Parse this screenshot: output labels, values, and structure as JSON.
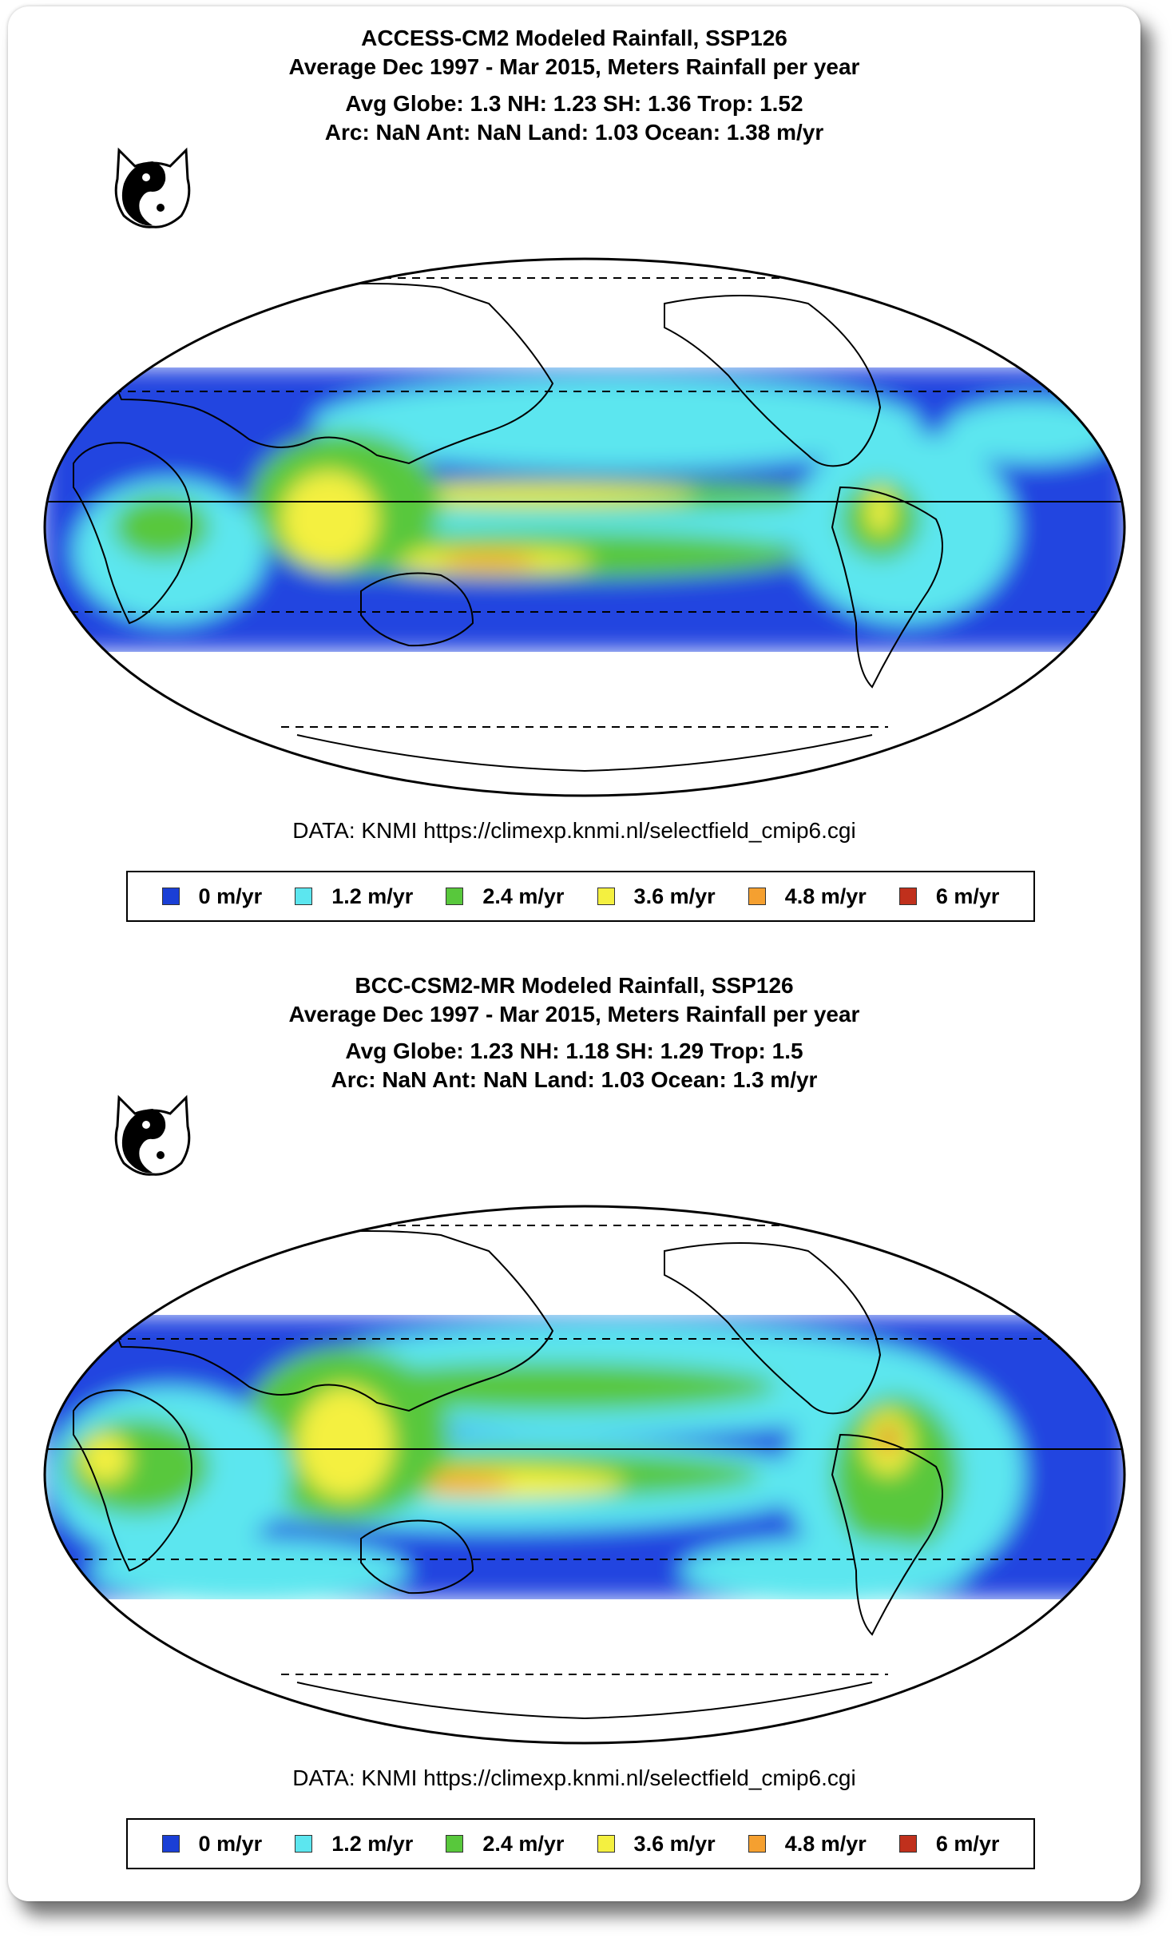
{
  "colors": {
    "c0": "#1a3fd6",
    "c1": "#5ce6ef",
    "c2": "#58c83c",
    "c3": "#f4f040",
    "c4": "#f5a030",
    "c5": "#c0301c"
  },
  "panels": [
    {
      "title": "ACCESS-CM2 Modeled Rainfall, SSP126",
      "subtitle": "Average Dec 1997 - Mar 2015, Meters Rainfall per year",
      "stats1": "Avg Globe: 1.3  NH: 1.23  SH: 1.36  Trop: 1.52",
      "stats2": "Arc: NaN  Ant: NaN  Land: 1.03 Ocean: 1.38 m/yr",
      "source": "DATA: KNMI https://climexp.knmi.nl/selectfield_cmip6.cgi",
      "legend": [
        "0 m/yr",
        "1.2 m/yr",
        "2.4 m/yr",
        "3.6 m/yr",
        "4.8 m/yr",
        "6 m/yr"
      ]
    },
    {
      "title": "BCC-CSM2-MR Modeled Rainfall, SSP126",
      "subtitle": "Average Dec 1997 - Mar 2015, Meters Rainfall per year",
      "stats1": "Avg Globe: 1.23  NH: 1.18  SH: 1.29  Trop: 1.5",
      "stats2": "Arc: NaN  Ant: NaN  Land: 1.03 Ocean: 1.3 m/yr",
      "source": "DATA: KNMI https://climexp.knmi.nl/selectfield_cmip6.cgi",
      "legend": [
        "0 m/yr",
        "1.2 m/yr",
        "2.4 m/yr",
        "3.6 m/yr",
        "4.8 m/yr",
        "6 m/yr"
      ]
    }
  ]
}
